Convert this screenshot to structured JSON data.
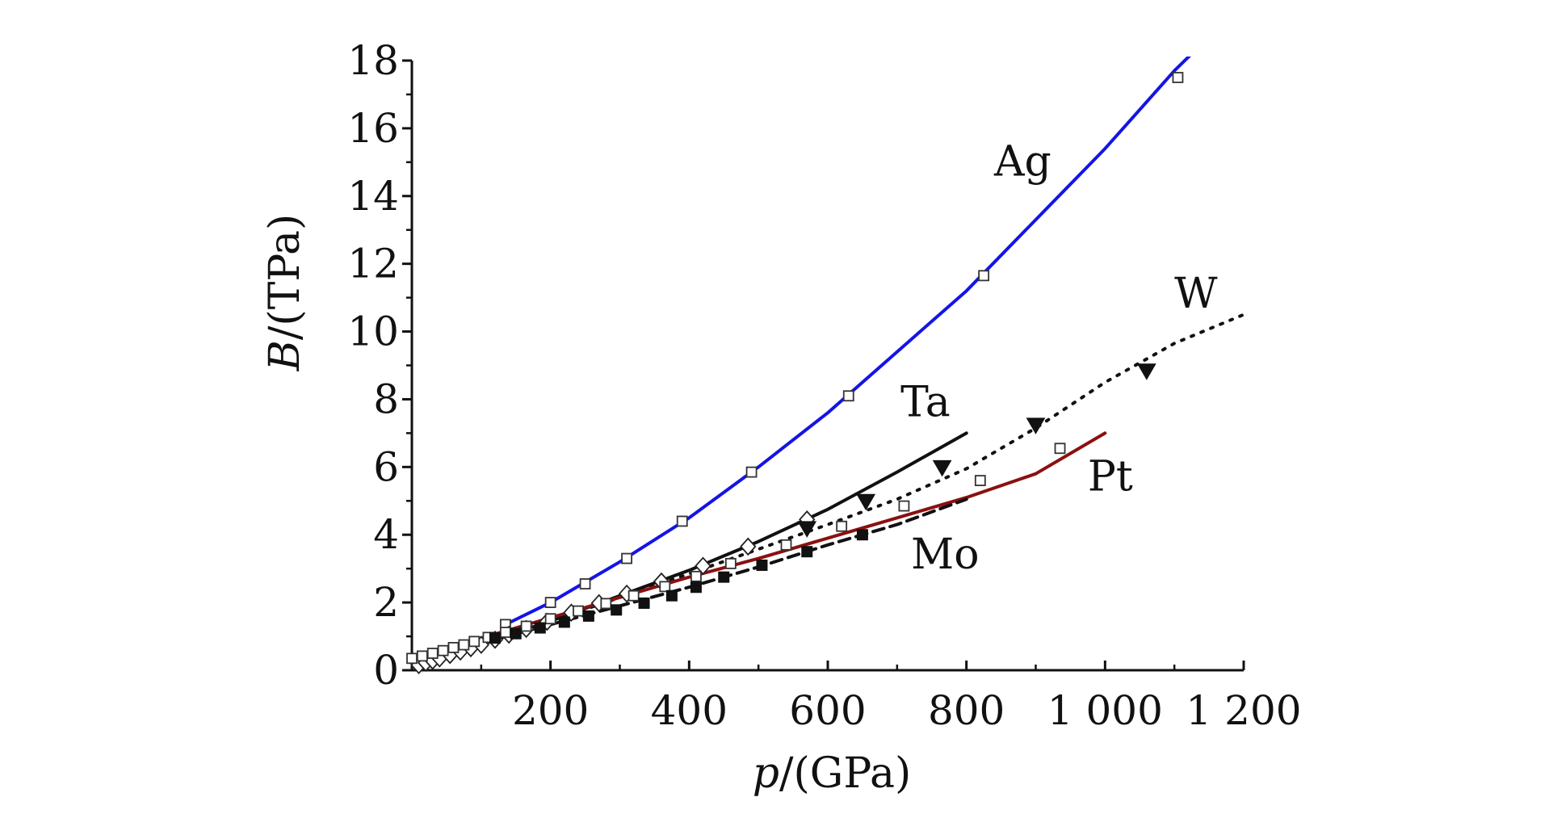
{
  "chart_data": {
    "type": "line",
    "title": "",
    "xlabel": {
      "var": "p",
      "unit": "/(GPa)"
    },
    "ylabel": {
      "var": "B",
      "unit": "/(TPa)"
    },
    "xlim": [
      0,
      1200
    ],
    "ylim": [
      0,
      18
    ],
    "x_ticks": [
      {
        "value": 200,
        "label": "200"
      },
      {
        "value": 400,
        "label": "400"
      },
      {
        "value": 600,
        "label": "600"
      },
      {
        "value": 800,
        "label": "800"
      },
      {
        "value": 1000,
        "label": "1 000"
      },
      {
        "value": 1200,
        "label": "1 200"
      }
    ],
    "y_ticks": [
      {
        "value": 0,
        "label": "0"
      },
      {
        "value": 2,
        "label": "2"
      },
      {
        "value": 4,
        "label": "4"
      },
      {
        "value": 6,
        "label": "6"
      },
      {
        "value": 8,
        "label": "8"
      },
      {
        "value": 10,
        "label": "10"
      },
      {
        "value": 12,
        "label": "12"
      },
      {
        "value": 14,
        "label": "14"
      },
      {
        "value": 16,
        "label": "16"
      },
      {
        "value": 18,
        "label": "18"
      }
    ],
    "grid": false,
    "legend": "none",
    "series": [
      {
        "name": "Ag",
        "color": "#1414e6",
        "line_style": "solid",
        "marker": "open-square",
        "label_at": [
          840,
          14.6
        ],
        "curve": [
          [
            130,
            1.3
          ],
          [
            200,
            2.0
          ],
          [
            300,
            3.2
          ],
          [
            400,
            4.5
          ],
          [
            500,
            6.0
          ],
          [
            600,
            7.6
          ],
          [
            700,
            9.4
          ],
          [
            800,
            11.2
          ],
          [
            900,
            13.3
          ],
          [
            1000,
            15.4
          ],
          [
            1100,
            17.7
          ],
          [
            1125,
            18.2
          ]
        ],
        "points": [
          [
            135,
            1.35
          ],
          [
            200,
            2.0
          ],
          [
            250,
            2.55
          ],
          [
            310,
            3.3
          ],
          [
            390,
            4.4
          ],
          [
            490,
            5.85
          ],
          [
            630,
            8.1
          ],
          [
            825,
            11.65
          ],
          [
            1105,
            17.5
          ]
        ]
      },
      {
        "name": "Ta",
        "color": "#111111",
        "line_style": "solid",
        "marker": "open-diamond",
        "label_at": [
          705,
          7.5
        ],
        "curve": [
          [
            0,
            0.1
          ],
          [
            100,
            0.75
          ],
          [
            200,
            1.45
          ],
          [
            300,
            2.2
          ],
          [
            400,
            2.95
          ],
          [
            500,
            3.8
          ],
          [
            600,
            4.75
          ],
          [
            700,
            5.85
          ],
          [
            800,
            7.0
          ]
        ],
        "points": [
          [
            10,
            0.15
          ],
          [
            20,
            0.22
          ],
          [
            30,
            0.28
          ],
          [
            40,
            0.35
          ],
          [
            55,
            0.45
          ],
          [
            70,
            0.55
          ],
          [
            85,
            0.65
          ],
          [
            100,
            0.75
          ],
          [
            120,
            0.9
          ],
          [
            140,
            1.05
          ],
          [
            165,
            1.22
          ],
          [
            195,
            1.43
          ],
          [
            230,
            1.7
          ],
          [
            270,
            1.98
          ],
          [
            310,
            2.26
          ],
          [
            360,
            2.62
          ],
          [
            420,
            3.08
          ],
          [
            485,
            3.65
          ],
          [
            570,
            4.45
          ]
        ]
      },
      {
        "name": "W",
        "color": "#111111",
        "line_style": "dotted",
        "marker": "filled-triangle-down",
        "label_at": [
          1100,
          10.7
        ],
        "curve": [
          [
            0,
            0.1
          ],
          [
            200,
            1.45
          ],
          [
            400,
            2.85
          ],
          [
            600,
            4.3
          ],
          [
            700,
            5.05
          ],
          [
            800,
            5.95
          ],
          [
            900,
            7.15
          ],
          [
            1000,
            8.5
          ],
          [
            1100,
            9.65
          ],
          [
            1200,
            10.5
          ]
        ],
        "points": [
          [
            570,
            4.2
          ],
          [
            655,
            5.0
          ],
          [
            765,
            6.0
          ],
          [
            900,
            7.25
          ],
          [
            1060,
            8.85
          ]
        ]
      },
      {
        "name": "Pt",
        "color": "#8b1010",
        "line_style": "solid",
        "marker": "open-square",
        "label_at": [
          975,
          5.3
        ],
        "curve": [
          [
            0,
            0.35
          ],
          [
            100,
            0.95
          ],
          [
            200,
            1.55
          ],
          [
            300,
            2.15
          ],
          [
            400,
            2.75
          ],
          [
            500,
            3.3
          ],
          [
            600,
            3.9
          ],
          [
            700,
            4.5
          ],
          [
            800,
            5.1
          ],
          [
            900,
            5.8
          ],
          [
            1000,
            7.0
          ]
        ],
        "points": [
          [
            0,
            0.35
          ],
          [
            15,
            0.42
          ],
          [
            30,
            0.5
          ],
          [
            45,
            0.58
          ],
          [
            60,
            0.67
          ],
          [
            75,
            0.75
          ],
          [
            90,
            0.85
          ],
          [
            110,
            0.97
          ],
          [
            135,
            1.12
          ],
          [
            165,
            1.3
          ],
          [
            200,
            1.52
          ],
          [
            240,
            1.75
          ],
          [
            280,
            1.97
          ],
          [
            320,
            2.2
          ],
          [
            365,
            2.47
          ],
          [
            410,
            2.77
          ],
          [
            460,
            3.15
          ],
          [
            540,
            3.7
          ],
          [
            620,
            4.25
          ],
          [
            710,
            4.85
          ],
          [
            820,
            5.6
          ],
          [
            935,
            6.55
          ]
        ]
      },
      {
        "name": "Mo",
        "color": "#111111",
        "line_style": "dashed",
        "marker": "filled-square",
        "label_at": [
          720,
          3.0
        ],
        "curve": [
          [
            0,
            0.2
          ],
          [
            100,
            0.8
          ],
          [
            200,
            1.35
          ],
          [
            300,
            1.9
          ],
          [
            400,
            2.45
          ],
          [
            500,
            3.05
          ],
          [
            600,
            3.7
          ],
          [
            700,
            4.3
          ],
          [
            800,
            5.05
          ]
        ],
        "points": [
          [
            120,
            0.95
          ],
          [
            150,
            1.08
          ],
          [
            185,
            1.25
          ],
          [
            220,
            1.42
          ],
          [
            255,
            1.6
          ],
          [
            295,
            1.78
          ],
          [
            335,
            1.98
          ],
          [
            375,
            2.2
          ],
          [
            410,
            2.45
          ],
          [
            450,
            2.75
          ],
          [
            505,
            3.1
          ],
          [
            570,
            3.5
          ],
          [
            650,
            4.0
          ]
        ]
      }
    ]
  }
}
